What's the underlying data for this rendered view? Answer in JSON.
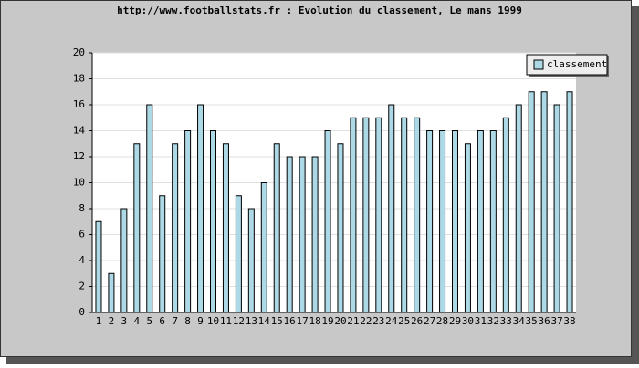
{
  "chart_data": {
    "type": "bar",
    "title": "http://www.footballstats.fr : Evolution du classement, Le mans 1999",
    "categories": [
      "1",
      "2",
      "3",
      "4",
      "5",
      "6",
      "7",
      "8",
      "9",
      "10",
      "11",
      "12",
      "13",
      "14",
      "15",
      "16",
      "17",
      "18",
      "19",
      "20",
      "21",
      "22",
      "23",
      "24",
      "25",
      "26",
      "27",
      "28",
      "29",
      "30",
      "31",
      "32",
      "33",
      "34",
      "35",
      "36",
      "37",
      "38"
    ],
    "series": [
      {
        "name": "classement",
        "color": "#add8e6",
        "values": [
          7,
          3,
          8,
          13,
          16,
          9,
          13,
          14,
          16,
          14,
          13,
          9,
          8,
          10,
          13,
          12,
          12,
          12,
          14,
          13,
          15,
          15,
          15,
          16,
          15,
          15,
          14,
          14,
          14,
          13,
          14,
          14,
          15,
          16,
          17,
          17,
          16,
          17
        ]
      }
    ],
    "ylim": [
      0,
      20
    ],
    "yticks": [
      0,
      2,
      4,
      6,
      8,
      10,
      12,
      14,
      16,
      18,
      20
    ],
    "grid": true,
    "legend": "top-right"
  }
}
